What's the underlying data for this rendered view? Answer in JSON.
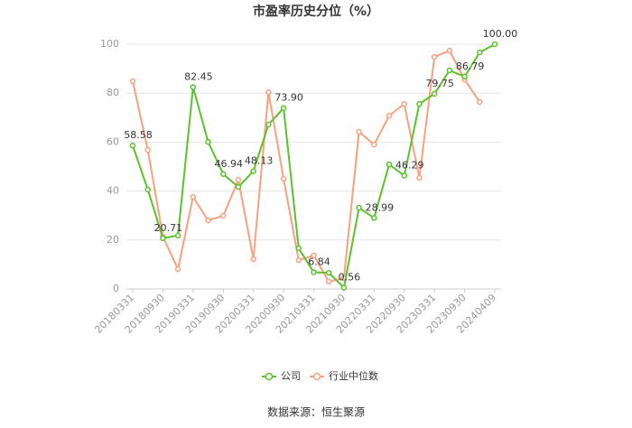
{
  "chart_data": {
    "type": "line",
    "title": "市盈率历史分位（%）",
    "source": "数据来源：恒生聚源",
    "categories": [
      "20180331",
      null,
      "20180930",
      null,
      "20190331",
      null,
      "20190930",
      null,
      "20200331",
      null,
      "20200930",
      null,
      "20210331",
      null,
      "20210930",
      null,
      "20220331",
      null,
      "20220930",
      null,
      "20230331",
      null,
      "20230930",
      null,
      "20240409"
    ],
    "series": [
      {
        "name": "公司",
        "color": "#5cc12b",
        "values": [
          58.58,
          40.6,
          20.71,
          21.8,
          82.45,
          60.1,
          46.94,
          41.7,
          48.13,
          67.2,
          73.9,
          16.6,
          6.84,
          6.6,
          0.56,
          33.2,
          28.99,
          50.9,
          46.29,
          75.6,
          79.75,
          89.3,
          86.79,
          96.7,
          100
        ],
        "value_labels": [
          "58.58",
          null,
          "20.71",
          null,
          "82.45",
          null,
          "46.94",
          null,
          "48.13",
          null,
          "73.90",
          null,
          "6.84",
          null,
          "0.56",
          null,
          "28.99",
          null,
          "46.29",
          null,
          "79.75",
          null,
          "86.79",
          null,
          "100.00"
        ]
      },
      {
        "name": "行业中位数",
        "color": "#f7a17f",
        "values": [
          84.9,
          56.8,
          21.4,
          8.1,
          37.6,
          28.0,
          29.9,
          44.6,
          12.2,
          80.4,
          45.0,
          11.8,
          13.7,
          3.0,
          4.4,
          64.2,
          59.0,
          70.8,
          75.6,
          45.4,
          94.8,
          97.4,
          85.6,
          76.4,
          null
        ]
      }
    ],
    "ylim": [
      0,
      100
    ],
    "yticks": [
      0,
      20,
      40,
      60,
      80,
      100
    ],
    "grid": true,
    "legend": "bottom"
  }
}
